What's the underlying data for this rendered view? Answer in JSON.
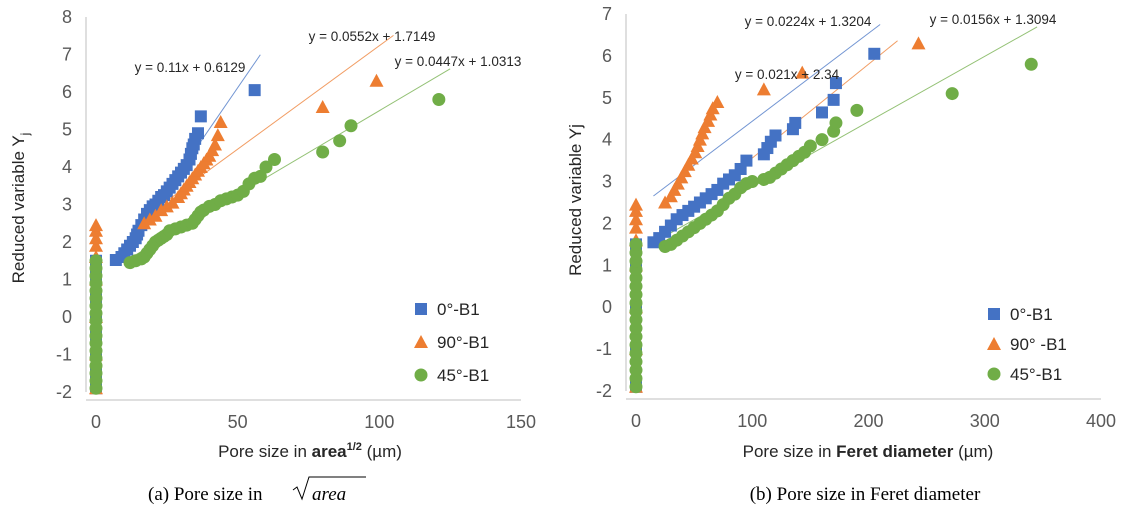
{
  "colors": {
    "s0": "#4472C4",
    "s90": "#ED7D31",
    "s45": "#70AD47",
    "axis": "#BFBFBF"
  },
  "chart_data": [
    {
      "type": "scatter",
      "caption": "(a) Pore size in",
      "caption_math": "area",
      "xlabel_prefix": "Pore size in ",
      "xlabel_bold": "area",
      "xlabel_sup": "1/2",
      "xlabel_unit": " (µm)",
      "ylabel": "Reduced variable Y",
      "ylabel_sub": "j",
      "xlim": [
        0,
        150
      ],
      "ylim": [
        -2,
        8
      ],
      "xticks": [
        "0",
        "50",
        "100",
        "150"
      ],
      "yticks": [
        "-2",
        "-1",
        "0",
        "1",
        "2",
        "3",
        "4",
        "5",
        "6",
        "7",
        "8"
      ],
      "legend": {
        "position": "bottom-right",
        "entries": [
          "0°-B1",
          "90°-B1",
          "45°-B1"
        ]
      },
      "series": [
        {
          "name": "0°-B1",
          "marker": "square",
          "color": "#4472C4",
          "points": [
            [
              0,
              -1.9
            ],
            [
              0,
              -1.5
            ],
            [
              0,
              -1
            ],
            [
              0,
              -0.5
            ],
            [
              0,
              0
            ],
            [
              0,
              0.5
            ],
            [
              0,
              1
            ],
            [
              0,
              1.3
            ],
            [
              0,
              1.5
            ],
            [
              7,
              1.52
            ],
            [
              9,
              1.6
            ],
            [
              10,
              1.7
            ],
            [
              11,
              1.8
            ],
            [
              12,
              1.9
            ],
            [
              13,
              2.0
            ],
            [
              14,
              2.1
            ],
            [
              14.5,
              2.2
            ],
            [
              15,
              2.3
            ],
            [
              16,
              2.45
            ],
            [
              17,
              2.6
            ],
            [
              18,
              2.75
            ],
            [
              19,
              2.85
            ],
            [
              20,
              2.95
            ],
            [
              21,
              3.0
            ],
            [
              22,
              3.1
            ],
            [
              23,
              3.2
            ],
            [
              24,
              3.25
            ],
            [
              25,
              3.35
            ],
            [
              26,
              3.45
            ],
            [
              27,
              3.55
            ],
            [
              28,
              3.65
            ],
            [
              29,
              3.75
            ],
            [
              30,
              3.85
            ],
            [
              31,
              3.95
            ],
            [
              32,
              4.05
            ],
            [
              33,
              4.2
            ],
            [
              33.5,
              4.35
            ],
            [
              34,
              4.5
            ],
            [
              34.5,
              4.6
            ],
            [
              35,
              4.75
            ],
            [
              36,
              4.9
            ],
            [
              37,
              5.35
            ],
            [
              56,
              6.05
            ]
          ],
          "trendline": {
            "slope": 0.11,
            "intercept": 0.6129,
            "equation": "y = 0.11x + 0.6129",
            "x_from": 7,
            "x_to": 58
          }
        },
        {
          "name": "90°-B1",
          "marker": "triangle",
          "color": "#ED7D31",
          "points": [
            [
              0,
              -1.9
            ],
            [
              0,
              -1
            ],
            [
              0,
              0
            ],
            [
              0,
              1
            ],
            [
              0,
              1.6
            ],
            [
              0,
              1.9
            ],
            [
              0,
              2.1
            ],
            [
              0,
              2.3
            ],
            [
              0,
              2.45
            ],
            [
              17,
              2.5
            ],
            [
              19,
              2.6
            ],
            [
              21,
              2.7
            ],
            [
              23,
              2.85
            ],
            [
              25,
              2.95
            ],
            [
              27,
              3.05
            ],
            [
              29,
              3.2
            ],
            [
              30,
              3.3
            ],
            [
              31,
              3.4
            ],
            [
              32,
              3.5
            ],
            [
              33,
              3.6
            ],
            [
              34,
              3.7
            ],
            [
              35,
              3.8
            ],
            [
              36,
              3.9
            ],
            [
              37,
              4.0
            ],
            [
              38,
              4.1
            ],
            [
              39,
              4.2
            ],
            [
              40,
              4.3
            ],
            [
              41,
              4.45
            ],
            [
              42,
              4.6
            ],
            [
              43,
              4.85
            ],
            [
              44,
              5.2
            ],
            [
              80,
              5.6
            ],
            [
              99,
              6.3
            ]
          ],
          "trendline": {
            "slope": 0.0552,
            "intercept": 1.7149,
            "equation": "y = 0.0552x + 1.7149",
            "x_from": 25,
            "x_to": 105
          }
        },
        {
          "name": "45°-B1",
          "marker": "circle",
          "color": "#70AD47",
          "points": [
            [
              0,
              -1.9
            ],
            [
              0,
              -1.7
            ],
            [
              0,
              -1.5
            ],
            [
              0,
              -1.3
            ],
            [
              0,
              -1.1
            ],
            [
              0,
              -0.9
            ],
            [
              0,
              -0.7
            ],
            [
              0,
              -0.5
            ],
            [
              0,
              -0.3
            ],
            [
              0,
              -0.1
            ],
            [
              0,
              0.1
            ],
            [
              0,
              0.3
            ],
            [
              0,
              0.5
            ],
            [
              0,
              0.7
            ],
            [
              0,
              0.9
            ],
            [
              0,
              1.1
            ],
            [
              0,
              1.3
            ],
            [
              0,
              1.5
            ],
            [
              12,
              1.45
            ],
            [
              14,
              1.5
            ],
            [
              16,
              1.55
            ],
            [
              17,
              1.6
            ],
            [
              18,
              1.7
            ],
            [
              19,
              1.8
            ],
            [
              20,
              1.9
            ],
            [
              21,
              2.0
            ],
            [
              22,
              2.05
            ],
            [
              23,
              2.1
            ],
            [
              24,
              2.15
            ],
            [
              25,
              2.2
            ],
            [
              26,
              2.3
            ],
            [
              28,
              2.35
            ],
            [
              30,
              2.4
            ],
            [
              32,
              2.45
            ],
            [
              34,
              2.5
            ],
            [
              35,
              2.6
            ],
            [
              36,
              2.7
            ],
            [
              37,
              2.8
            ],
            [
              38,
              2.85
            ],
            [
              40,
              2.95
            ],
            [
              42,
              3.0
            ],
            [
              44,
              3.1
            ],
            [
              46,
              3.15
            ],
            [
              48,
              3.2
            ],
            [
              50,
              3.25
            ],
            [
              52,
              3.35
            ],
            [
              54,
              3.55
            ],
            [
              56,
              3.7
            ],
            [
              58,
              3.75
            ],
            [
              60,
              4.0
            ],
            [
              63,
              4.2
            ],
            [
              80,
              4.4
            ],
            [
              86,
              4.7
            ],
            [
              90,
              5.1
            ],
            [
              121,
              5.8
            ]
          ],
          "trendline": {
            "slope": 0.0447,
            "intercept": 1.0313,
            "equation": "y = 0.0447x + 1.0313",
            "x_from": 12,
            "x_to": 125
          }
        }
      ]
    },
    {
      "type": "scatter",
      "caption": "(b) Pore size in Feret diameter",
      "xlabel_prefix": "Pore size in ",
      "xlabel_bold": "Feret diameter",
      "xlabel_unit": " (µm)",
      "ylabel": "Reduced variable Yj",
      "xlim": [
        0,
        400
      ],
      "ylim": [
        -2,
        7
      ],
      "xticks": [
        "0",
        "100",
        "200",
        "300",
        "400"
      ],
      "yticks": [
        "-2",
        "-1",
        "0",
        "1",
        "2",
        "3",
        "4",
        "5",
        "6",
        "7"
      ],
      "legend": {
        "position": "bottom-right",
        "entries": [
          "0°-B1",
          "90° -B1",
          "45°-B1"
        ]
      },
      "series": [
        {
          "name": "0°-B1",
          "marker": "square",
          "color": "#4472C4",
          "points": [
            [
              0,
              -1.9
            ],
            [
              0,
              -1
            ],
            [
              0,
              0
            ],
            [
              0,
              1
            ],
            [
              0,
              1.5
            ],
            [
              15,
              1.55
            ],
            [
              20,
              1.65
            ],
            [
              25,
              1.8
            ],
            [
              30,
              1.95
            ],
            [
              35,
              2.1
            ],
            [
              40,
              2.2
            ],
            [
              45,
              2.3
            ],
            [
              50,
              2.4
            ],
            [
              55,
              2.5
            ],
            [
              60,
              2.6
            ],
            [
              65,
              2.7
            ],
            [
              70,
              2.8
            ],
            [
              75,
              2.95
            ],
            [
              80,
              3.05
            ],
            [
              85,
              3.15
            ],
            [
              90,
              3.3
            ],
            [
              95,
              3.5
            ],
            [
              110,
              3.65
            ],
            [
              113,
              3.8
            ],
            [
              116,
              3.95
            ],
            [
              120,
              4.1
            ],
            [
              135,
              4.25
            ],
            [
              137,
              4.4
            ],
            [
              160,
              4.65
            ],
            [
              170,
              4.95
            ],
            [
              172,
              5.35
            ],
            [
              205,
              6.05
            ]
          ],
          "trendline": {
            "slope": 0.021,
            "intercept": 2.34,
            "equation": "y = 0.021x + 2.34",
            "x_from": 15,
            "x_to": 210
          }
        },
        {
          "name": "90° -B1",
          "marker": "triangle",
          "color": "#ED7D31",
          "points": [
            [
              0,
              -1.9
            ],
            [
              0,
              -1
            ],
            [
              0,
              0
            ],
            [
              0,
              1
            ],
            [
              0,
              1.6
            ],
            [
              0,
              1.9
            ],
            [
              0,
              2.1
            ],
            [
              0,
              2.3
            ],
            [
              0,
              2.45
            ],
            [
              25,
              2.5
            ],
            [
              30,
              2.65
            ],
            [
              33,
              2.8
            ],
            [
              36,
              2.95
            ],
            [
              39,
              3.1
            ],
            [
              42,
              3.25
            ],
            [
              45,
              3.4
            ],
            [
              48,
              3.55
            ],
            [
              51,
              3.7
            ],
            [
              53,
              3.85
            ],
            [
              55,
              4.0
            ],
            [
              57,
              4.15
            ],
            [
              59,
              4.3
            ],
            [
              62,
              4.45
            ],
            [
              64,
              4.6
            ],
            [
              66,
              4.75
            ],
            [
              70,
              4.9
            ],
            [
              110,
              5.2
            ],
            [
              143,
              5.6
            ],
            [
              243,
              6.3
            ]
          ],
          "trendline": {
            "slope": 0.0224,
            "intercept": 1.3204,
            "equation": "y = 0.0224x + 1.3204",
            "x_from": 30,
            "x_to": 225
          }
        },
        {
          "name": "45°-B1",
          "marker": "circle",
          "color": "#70AD47",
          "points": [
            [
              0,
              -1.9
            ],
            [
              0,
              -1.7
            ],
            [
              0,
              -1.5
            ],
            [
              0,
              -1.3
            ],
            [
              0,
              -1.1
            ],
            [
              0,
              -0.9
            ],
            [
              0,
              -0.7
            ],
            [
              0,
              -0.5
            ],
            [
              0,
              -0.3
            ],
            [
              0,
              -0.1
            ],
            [
              0,
              0.1
            ],
            [
              0,
              0.3
            ],
            [
              0,
              0.5
            ],
            [
              0,
              0.7
            ],
            [
              0,
              0.9
            ],
            [
              0,
              1.1
            ],
            [
              0,
              1.3
            ],
            [
              0,
              1.5
            ],
            [
              25,
              1.45
            ],
            [
              30,
              1.5
            ],
            [
              35,
              1.6
            ],
            [
              40,
              1.7
            ],
            [
              45,
              1.8
            ],
            [
              50,
              1.9
            ],
            [
              55,
              2.0
            ],
            [
              60,
              2.1
            ],
            [
              65,
              2.2
            ],
            [
              70,
              2.3
            ],
            [
              75,
              2.45
            ],
            [
              80,
              2.6
            ],
            [
              85,
              2.7
            ],
            [
              90,
              2.85
            ],
            [
              95,
              2.95
            ],
            [
              100,
              3.0
            ],
            [
              110,
              3.05
            ],
            [
              115,
              3.1
            ],
            [
              120,
              3.2
            ],
            [
              125,
              3.3
            ],
            [
              130,
              3.4
            ],
            [
              135,
              3.5
            ],
            [
              140,
              3.6
            ],
            [
              145,
              3.7
            ],
            [
              150,
              3.85
            ],
            [
              160,
              4.0
            ],
            [
              170,
              4.2
            ],
            [
              172,
              4.4
            ],
            [
              190,
              4.7
            ],
            [
              272,
              5.1
            ],
            [
              340,
              5.8
            ]
          ],
          "trendline": {
            "slope": 0.0156,
            "intercept": 1.3094,
            "equation": "y = 0.0156x + 1.3094",
            "x_from": 25,
            "x_to": 345
          }
        }
      ]
    }
  ]
}
